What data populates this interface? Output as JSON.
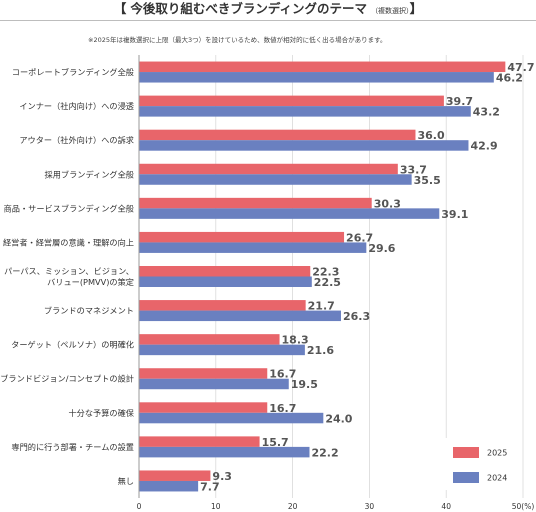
{
  "title": {
    "open": "【",
    "main": "今後取り組むべきブランディングのテーマ",
    "sub": "（複数選択）",
    "close": "】"
  },
  "note": "※2025年は複数選択に上限（最大3つ）を設けているため、数値が相対的に低く出る場合があります。",
  "chart_data": {
    "type": "bar",
    "orientation": "horizontal",
    "categories": [
      [
        "コーポレートブランディング全般"
      ],
      [
        "インナー（社内向け）への浸透"
      ],
      [
        "アウター（社外向け）への訴求"
      ],
      [
        "採用ブランディング全般"
      ],
      [
        "商品・サービスブランディング全般"
      ],
      [
        "経営者・経営層の意識・理解の向上"
      ],
      [
        "パーパス、ミッション、ビジョン、",
        "バリュー(PMVV)の策定"
      ],
      [
        "ブランドのマネジメント"
      ],
      [
        "ターゲット（ペルソナ）の明確化"
      ],
      [
        "ブランドビジョン/コンセプトの設計"
      ],
      [
        "十分な予算の確保"
      ],
      [
        "専門的に行う部署・チームの設置"
      ],
      [
        "無し"
      ]
    ],
    "series": [
      {
        "name": "2025",
        "color": "#e8656a",
        "values": [
          47.7,
          39.7,
          36.0,
          33.7,
          30.3,
          26.7,
          22.3,
          21.7,
          18.3,
          16.7,
          16.7,
          15.7,
          9.3
        ]
      },
      {
        "name": "2024",
        "color": "#6a80c0",
        "values": [
          46.2,
          43.2,
          42.9,
          35.5,
          39.1,
          29.6,
          22.5,
          26.3,
          21.6,
          19.5,
          24.0,
          22.2,
          7.7
        ]
      }
    ],
    "xlim": [
      0,
      50
    ],
    "xticks": [
      "0",
      "10",
      "20",
      "30",
      "40",
      "50(%)"
    ],
    "value_format": "one-decimal",
    "legend": "bottom-right",
    "grid": true
  }
}
